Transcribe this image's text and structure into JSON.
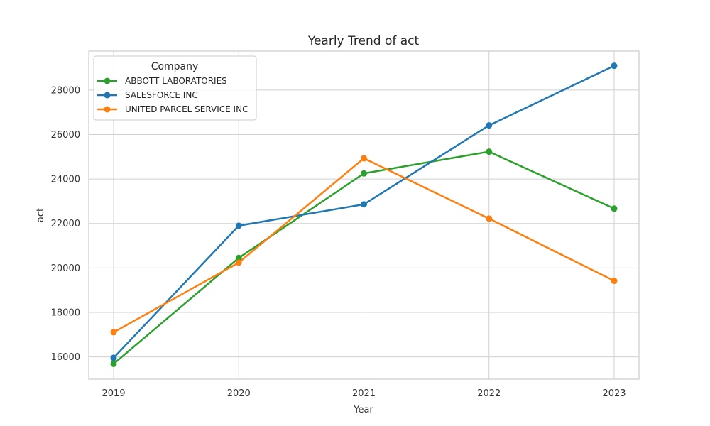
{
  "chart_data": {
    "type": "line",
    "title": "Yearly Trend of act",
    "xlabel": "Year",
    "ylabel": "act",
    "x": [
      2019,
      2020,
      2021,
      2022,
      2023
    ],
    "x_tick_labels": [
      "2019",
      "2020",
      "2021",
      "2022",
      "2023"
    ],
    "y_ticks": [
      16000,
      18000,
      20000,
      22000,
      24000,
      26000,
      28000
    ],
    "y_tick_labels": [
      "16000",
      "18000",
      "20000",
      "22000",
      "24000",
      "26000",
      "28000"
    ],
    "ylim": [
      15000,
      29750
    ],
    "grid": true,
    "legend": {
      "title": "Company",
      "placement": "top-left"
    },
    "series": [
      {
        "name": "ABBOTT LABORATORIES",
        "color": "#2ca02c",
        "values": [
          15690,
          20450,
          24250,
          25230,
          22670
        ]
      },
      {
        "name": "SALESFORCE INC",
        "color": "#1f77b4",
        "values": [
          15960,
          21900,
          22860,
          26410,
          29090
        ]
      },
      {
        "name": "UNITED PARCEL SERVICE INC",
        "color": "#ff7f0e",
        "values": [
          17110,
          20240,
          24930,
          22220,
          19420
        ]
      }
    ]
  }
}
